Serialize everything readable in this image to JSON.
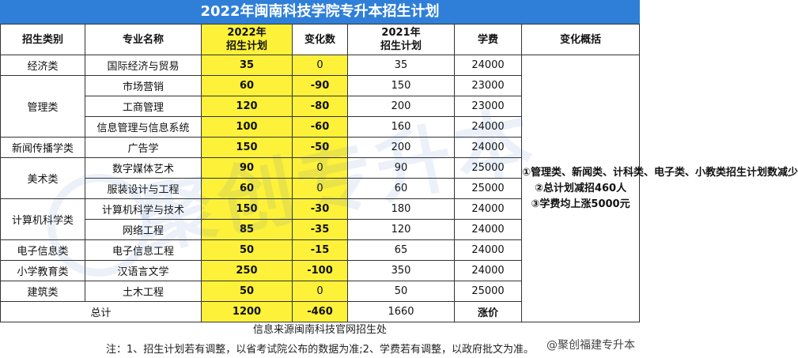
{
  "title": "2022年闽南科技学院专升本招生计划",
  "headers": {
    "category": "招生类别",
    "major": "专业名称",
    "plan2022_line1": "2022年",
    "plan2022_line2": "招生计划",
    "change": "变化数",
    "plan2021_line1": "2021年",
    "plan2021_line2": "招生计划",
    "tuition": "学费",
    "summary": "变化概括"
  },
  "categories": {
    "economics": "经济类",
    "management": "管理类",
    "journalism": "新闻传播学类",
    "arts": "美术类",
    "computer": "计算机科学类",
    "electronics": "电子信息类",
    "primary_edu": "小学教育类",
    "architecture": "建筑类"
  },
  "rows": [
    {
      "major": "国际经济与贸易",
      "plan2022": "35",
      "change": "0",
      "plan2021": "35",
      "tuition": "24000"
    },
    {
      "major": "市场营销",
      "plan2022": "60",
      "change": "-90",
      "plan2021": "150",
      "tuition": "23000"
    },
    {
      "major": "工商管理",
      "plan2022": "120",
      "change": "-80",
      "plan2021": "200",
      "tuition": "23000"
    },
    {
      "major": "信息管理与信息系统",
      "plan2022": "100",
      "change": "-60",
      "plan2021": "160",
      "tuition": "24000"
    },
    {
      "major": "广告学",
      "plan2022": "150",
      "change": "-50",
      "plan2021": "200",
      "tuition": "24000"
    },
    {
      "major": "数字媒体艺术",
      "plan2022": "90",
      "change": "0",
      "plan2021": "90",
      "tuition": "25000"
    },
    {
      "major": "服装设计与工程",
      "plan2022": "60",
      "change": "0",
      "plan2021": "60",
      "tuition": "25000"
    },
    {
      "major": "计算机科学与技术",
      "plan2022": "150",
      "change": "-30",
      "plan2021": "180",
      "tuition": "24000"
    },
    {
      "major": "网络工程",
      "plan2022": "85",
      "change": "-35",
      "plan2021": "120",
      "tuition": "24000"
    },
    {
      "major": "电子信息工程",
      "plan2022": "50",
      "change": "-15",
      "plan2021": "65",
      "tuition": "24000"
    },
    {
      "major": "汉语言文学",
      "plan2022": "250",
      "change": "-100",
      "plan2021": "350",
      "tuition": "24000"
    },
    {
      "major": "土木工程",
      "plan2022": "50",
      "change": "0",
      "plan2021": "50",
      "tuition": "25000"
    }
  ],
  "total": {
    "label": "总计",
    "plan2022": "1200",
    "change": "-460",
    "plan2021": "1660",
    "tuition": "涨价"
  },
  "summary_lines": [
    "①管理类、新闻类、计科类、电子类、小教类招生计划数减少",
    "②总计划减招460人",
    "③学费均上涨5000元"
  ],
  "source": "信息来源闽南科技官网招生处",
  "footnote": "注：1、招生计划若有调整，以省考试院公布的数据为准;2、学费若有调整，以政府批文为准。",
  "watermark": "聚创专升本",
  "weibo_mark": "@聚创福建专升本",
  "colors": {
    "header_bg": "#2f7fd8",
    "highlight": "#fdf13a",
    "accent_red": "#e1121b"
  }
}
